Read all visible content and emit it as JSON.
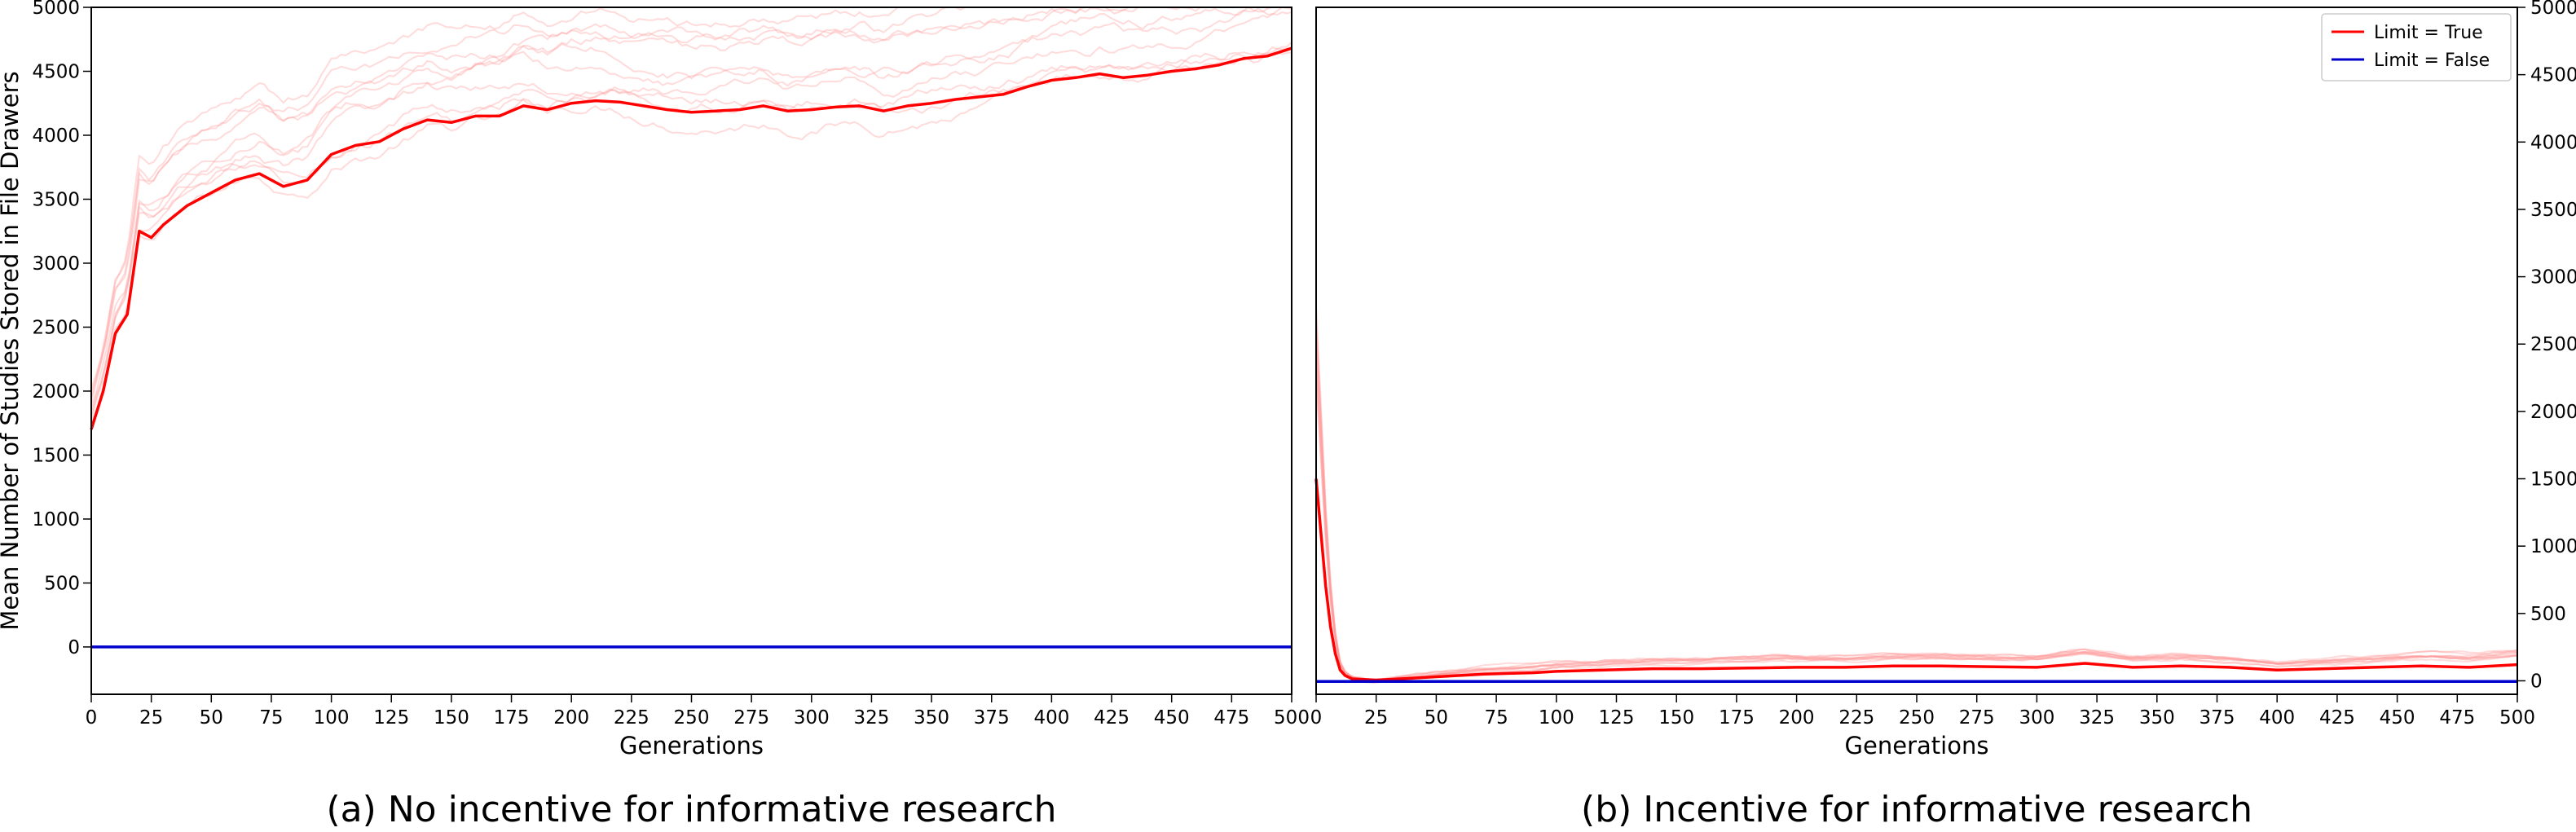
{
  "figure": {
    "panels": [
      {
        "caption": "(a) No incentive for informative research"
      },
      {
        "caption": "(b) Incentive for informative research"
      }
    ]
  },
  "colors": {
    "limit_true": "#ff0000",
    "limit_false": "#0000cc",
    "run_traces": "#ff9999"
  },
  "chart_data": [
    {
      "type": "line",
      "title": "",
      "xlabel": "Generations",
      "ylabel": "Mean Number of Studies Stored in File Drawers",
      "xlim": [
        0,
        500
      ],
      "ylim": [
        -370,
        5000
      ],
      "xticks": [
        "0",
        "25",
        "50",
        "75",
        "100",
        "125",
        "150",
        "175",
        "200",
        "225",
        "250",
        "275",
        "300",
        "325",
        "350",
        "375",
        "400",
        "425",
        "450",
        "475",
        "500"
      ],
      "yticks": [
        "0",
        "500",
        "1000",
        "1500",
        "2000",
        "2500",
        "3000",
        "3500",
        "4000",
        "4500",
        "5000"
      ],
      "y_axis_side": "left",
      "grid": false,
      "series": [
        {
          "name": "Limit = True",
          "x": [
            0,
            5,
            10,
            15,
            20,
            25,
            30,
            40,
            50,
            60,
            70,
            80,
            90,
            100,
            110,
            120,
            130,
            140,
            150,
            160,
            170,
            180,
            190,
            200,
            210,
            220,
            230,
            240,
            250,
            260,
            270,
            280,
            290,
            300,
            310,
            320,
            330,
            340,
            350,
            360,
            370,
            380,
            390,
            400,
            410,
            420,
            430,
            440,
            450,
            460,
            470,
            480,
            490,
            500
          ],
          "y": [
            1700,
            2000,
            2450,
            2600,
            3250,
            3200,
            3300,
            3450,
            3550,
            3650,
            3700,
            3600,
            3650,
            3850,
            3920,
            3950,
            4050,
            4120,
            4100,
            4150,
            4150,
            4230,
            4200,
            4250,
            4270,
            4260,
            4230,
            4200,
            4180,
            4190,
            4200,
            4230,
            4190,
            4200,
            4220,
            4230,
            4190,
            4230,
            4250,
            4280,
            4300,
            4320,
            4380,
            4430,
            4450,
            4480,
            4450,
            4470,
            4500,
            4520,
            4550,
            4600,
            4620,
            4680
          ]
        },
        {
          "name": "Limit = False",
          "x": [
            0,
            100,
            200,
            300,
            400,
            500
          ],
          "y": [
            0,
            0,
            0,
            0,
            0,
            0
          ]
        }
      ]
    },
    {
      "type": "line",
      "title": "",
      "xlabel": "Generations",
      "ylabel": "",
      "xlim": [
        0,
        500
      ],
      "ylim": [
        -100,
        5000
      ],
      "xticks": [
        "0",
        "25",
        "50",
        "75",
        "100",
        "125",
        "150",
        "175",
        "200",
        "225",
        "250",
        "275",
        "300",
        "325",
        "350",
        "375",
        "400",
        "425",
        "450",
        "475",
        "500"
      ],
      "yticks": [
        "0",
        "500",
        "1000",
        "1500",
        "2000",
        "2500",
        "3000",
        "3500",
        "4000",
        "4500",
        "5000"
      ],
      "y_axis_side": "right",
      "grid": false,
      "legend": {
        "placement": "top-right",
        "entries": [
          "Limit = True",
          "Limit = False"
        ]
      },
      "series": [
        {
          "name": "Limit = True",
          "x": [
            0,
            2,
            4,
            6,
            8,
            10,
            12,
            15,
            20,
            25,
            30,
            40,
            50,
            60,
            70,
            80,
            90,
            100,
            120,
            140,
            160,
            180,
            200,
            220,
            240,
            260,
            280,
            300,
            320,
            340,
            360,
            380,
            400,
            420,
            440,
            460,
            480,
            500
          ],
          "y": [
            1500,
            1100,
            700,
            400,
            200,
            80,
            40,
            15,
            10,
            5,
            10,
            20,
            30,
            40,
            50,
            55,
            60,
            70,
            80,
            90,
            90,
            95,
            100,
            100,
            110,
            110,
            105,
            100,
            130,
            100,
            110,
            100,
            80,
            90,
            100,
            110,
            100,
            120
          ]
        },
        {
          "name": "Limit = False",
          "x": [
            0,
            100,
            200,
            300,
            400,
            500
          ],
          "y": [
            -5,
            -5,
            -5,
            -5,
            -5,
            -5
          ]
        }
      ]
    }
  ]
}
